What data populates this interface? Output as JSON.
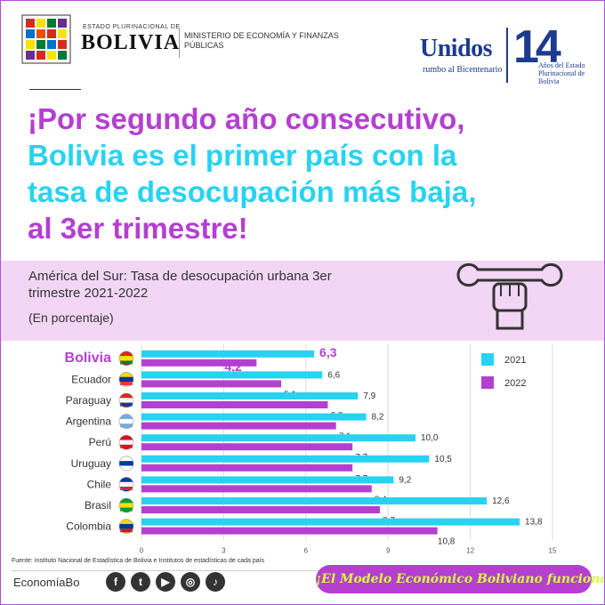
{
  "header": {
    "gov_small": "ESTADO PLURINACIONAL DE",
    "gov_big": "BOLIVIA",
    "ministry": "MINISTERIO DE ECONOMÍA Y FINANZAS PÚBLICAS",
    "unidos": "Unidos",
    "unidos_sub": "rumbo al Bicentenario",
    "fourteen": "14",
    "anios": "Años del Estado Plurinacional de Bolivia"
  },
  "headline": {
    "line1": "¡Por segundo año consecutivo,",
    "line2": "Bolivia es el primer país con la",
    "line3": "tasa de desocupación más baja,",
    "line4": "al 3er trimestre!"
  },
  "colors": {
    "purple": "#b43fd1",
    "cyan": "#27d3f0",
    "band": "#f3d6f5",
    "accent_yellow": "#d8ff3a"
  },
  "chart_data": {
    "type": "bar",
    "orientation": "horizontal",
    "title": "América del Sur: Tasa de desocupación urbana 3er trimestre 2021-2022",
    "subtitle": "(En porcentaje)",
    "categories": [
      "Bolivia",
      "Ecuador",
      "Paraguay",
      "Argentina",
      "Perú",
      "Uruguay",
      "Chile",
      "Brasil",
      "Colombia"
    ],
    "series": [
      {
        "name": "2021",
        "color": "#27d3f0",
        "values": [
          6.3,
          6.6,
          7.9,
          8.2,
          10.0,
          10.5,
          9.2,
          12.6,
          13.8
        ]
      },
      {
        "name": "2022",
        "color": "#b43fd1",
        "values": [
          4.2,
          5.1,
          6.8,
          7.1,
          7.7,
          7.7,
          8.4,
          8.7,
          10.8
        ]
      }
    ],
    "value_labels": {
      "2021": [
        "6,3",
        "6,6",
        "7,9",
        "8,2",
        "10,0",
        "10,5",
        "9,2",
        "12,6",
        "13,8"
      ],
      "2022": [
        "4,2",
        "5,1",
        "6,8",
        "7,1",
        "7,7",
        "7,7",
        "8,4",
        "8,7",
        "10,8"
      ]
    },
    "xlim": [
      0,
      15
    ],
    "xticks": [
      0,
      3,
      6,
      9,
      12,
      15
    ],
    "grid": true,
    "legend": "top-right",
    "highlight": "Bolivia"
  },
  "footer": {
    "source": "Fuente: Instituto Nacional de Estadística de Bolivia e Institutos de estadísticas de cada país",
    "brand": "EconomíaBo",
    "slogan": "¡El Modelo Económico Boliviano funciona!",
    "social_icons": [
      "facebook-icon",
      "twitter-icon",
      "youtube-icon",
      "instagram-icon",
      "tiktok-icon"
    ]
  }
}
